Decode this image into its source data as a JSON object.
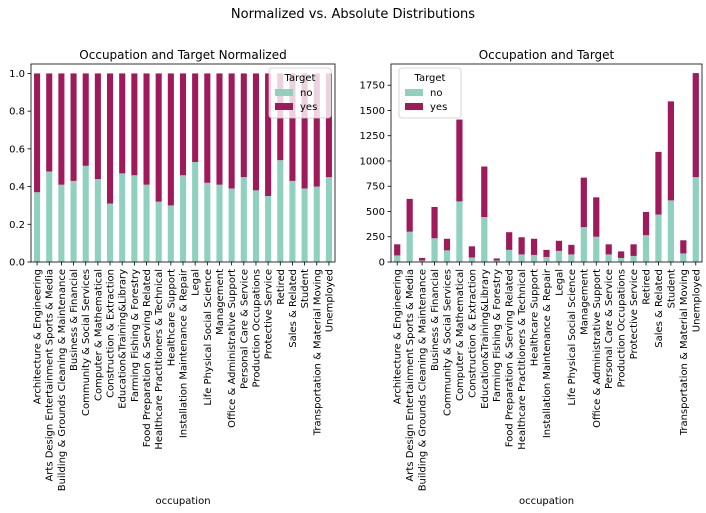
{
  "figure_title": "Normalized vs. Absolute Distributions",
  "colors": {
    "no": "#8fd0bf",
    "yes": "#9e1a5a"
  },
  "chart_data": [
    {
      "type": "bar",
      "stacked": true,
      "title": "Occupation and Target Normalized",
      "xlabel": "occupation",
      "ylabel": "",
      "ylim": [
        0,
        1.05
      ],
      "yticks": [
        0.0,
        0.2,
        0.4,
        0.6,
        0.8,
        1.0
      ],
      "ytick_labels": [
        "0.0",
        "0.2",
        "0.4",
        "0.6",
        "0.8",
        "1.0"
      ],
      "legend": {
        "title": "Target",
        "placement": "top-right"
      },
      "categories": [
        "Architecture & Engineering",
        "Arts Design Entertainment Sports & Media",
        "Building & Grounds Cleaning & Maintenance",
        "Business & Financial",
        "Community & Social Services",
        "Computer & Mathematical",
        "Construction & Extraction",
        "Education&Training&Library",
        "Farming Fishing & Forestry",
        "Food Preparation & Serving Related",
        "Healthcare Practitioners & Technical",
        "Healthcare Support",
        "Installation Maintenance & Repair",
        "Legal",
        "Life Physical Social Science",
        "Management",
        "Office & Administrative Support",
        "Personal Care & Service",
        "Production Occupations",
        "Protective Service",
        "Retired",
        "Sales & Related",
        "Student",
        "Transportation & Material Moving",
        "Unemployed"
      ],
      "series": [
        {
          "name": "no",
          "values": [
            0.37,
            0.48,
            0.41,
            0.43,
            0.51,
            0.44,
            0.31,
            0.47,
            0.46,
            0.41,
            0.32,
            0.3,
            0.46,
            0.53,
            0.42,
            0.41,
            0.39,
            0.45,
            0.38,
            0.35,
            0.54,
            0.43,
            0.39,
            0.4,
            0.45
          ]
        },
        {
          "name": "yes",
          "values": [
            0.63,
            0.52,
            0.59,
            0.57,
            0.49,
            0.56,
            0.69,
            0.53,
            0.54,
            0.59,
            0.68,
            0.7,
            0.54,
            0.47,
            0.58,
            0.59,
            0.61,
            0.55,
            0.62,
            0.65,
            0.46,
            0.57,
            0.61,
            0.6,
            0.55
          ]
        }
      ]
    },
    {
      "type": "bar",
      "stacked": true,
      "title": "Occupation and Target",
      "xlabel": "occupation",
      "ylabel": "",
      "ylim": [
        0,
        1960
      ],
      "yticks": [
        0,
        250,
        500,
        750,
        1000,
        1250,
        1500,
        1750
      ],
      "ytick_labels": [
        "0",
        "250",
        "500",
        "750",
        "1000",
        "1250",
        "1500",
        "1750"
      ],
      "legend": {
        "title": "Target",
        "placement": "top-left"
      },
      "categories": [
        "Architecture & Engineering",
        "Arts Design Entertainment Sports & Media",
        "Building & Grounds Cleaning & Maintenance",
        "Business & Financial",
        "Community & Social Services",
        "Computer & Mathematical",
        "Construction & Extraction",
        "Education&Training&Library",
        "Farming Fishing & Forestry",
        "Food Preparation & Serving Related",
        "Healthcare Practitioners & Technical",
        "Healthcare Support",
        "Installation Maintenance & Repair",
        "Legal",
        "Life Physical Social Science",
        "Management",
        "Office & Administrative Support",
        "Personal Care & Service",
        "Production Occupations",
        "Protective Service",
        "Retired",
        "Sales & Related",
        "Student",
        "Transportation & Material Moving",
        "Unemployed"
      ],
      "series": [
        {
          "name": "no",
          "values": [
            65,
            300,
            15,
            235,
            115,
            600,
            45,
            445,
            15,
            120,
            75,
            70,
            50,
            110,
            75,
            345,
            250,
            75,
            40,
            60,
            265,
            470,
            610,
            85,
            840
          ]
        },
        {
          "name": "yes",
          "values": [
            110,
            325,
            25,
            310,
            115,
            810,
            110,
            500,
            20,
            175,
            170,
            160,
            70,
            100,
            95,
            490,
            390,
            100,
            65,
            115,
            230,
            620,
            980,
            130,
            1030
          ]
        }
      ]
    }
  ]
}
